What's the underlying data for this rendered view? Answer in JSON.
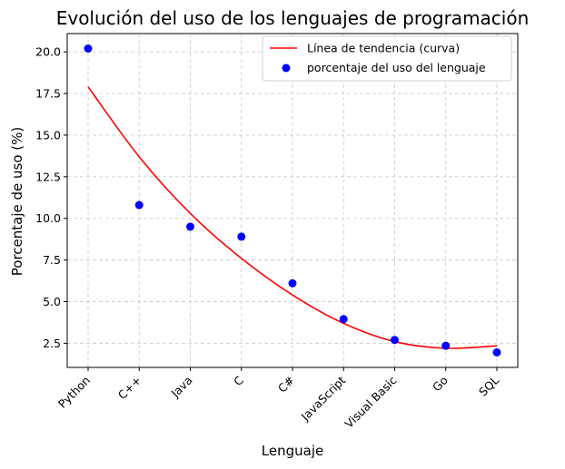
{
  "chart_data": {
    "type": "scatter",
    "title": "Evolución del uso de los lenguajes de programación",
    "xlabel": "Lenguaje",
    "ylabel": "Porcentaje de uso (%)",
    "categories": [
      "Python",
      "C++",
      "Java",
      "C",
      "C#",
      "JavaScript",
      "Visual Basic",
      "Go",
      "SQL"
    ],
    "series": [
      {
        "name": "porcentaje del uso del lenguaje",
        "kind": "scatter",
        "color": "#0000ff",
        "values": [
          20.2,
          10.8,
          9.5,
          8.9,
          6.1,
          3.95,
          2.7,
          2.35,
          1.95
        ]
      },
      {
        "name": "Línea de tendencia (curva)",
        "kind": "line",
        "color": "#ff0000",
        "values": [
          17.9,
          13.7,
          10.3,
          7.6,
          5.4,
          3.7,
          2.6,
          2.2,
          2.35
        ]
      }
    ],
    "ylim": [
      1.05,
      21.1
    ],
    "yticks": [
      "2.5",
      "5.0",
      "7.5",
      "10.0",
      "12.5",
      "15.0",
      "17.5",
      "20.0"
    ],
    "grid": true,
    "legend": "top-right"
  }
}
